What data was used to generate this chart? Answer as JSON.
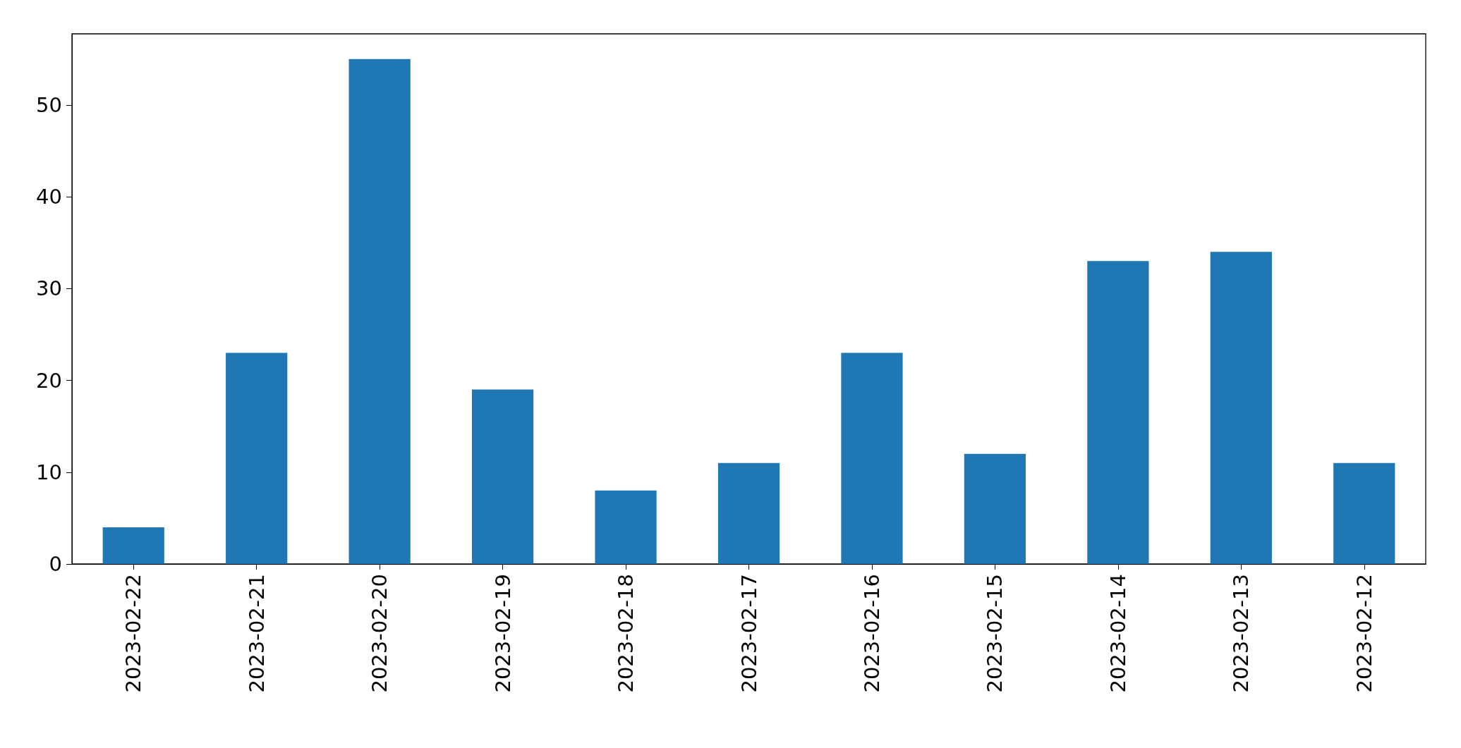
{
  "chart_data": {
    "type": "bar",
    "categories": [
      "2023-02-22",
      "2023-02-21",
      "2023-02-20",
      "2023-02-19",
      "2023-02-18",
      "2023-02-17",
      "2023-02-16",
      "2023-02-15",
      "2023-02-14",
      "2023-02-13",
      "2023-02-12"
    ],
    "values": [
      4,
      23,
      55,
      19,
      8,
      11,
      23,
      12,
      33,
      34,
      11
    ],
    "color": "#1f77b4",
    "ylim": [
      0,
      57.75
    ],
    "yticks": [
      0,
      10,
      20,
      30,
      40,
      50
    ],
    "grid": false
  }
}
